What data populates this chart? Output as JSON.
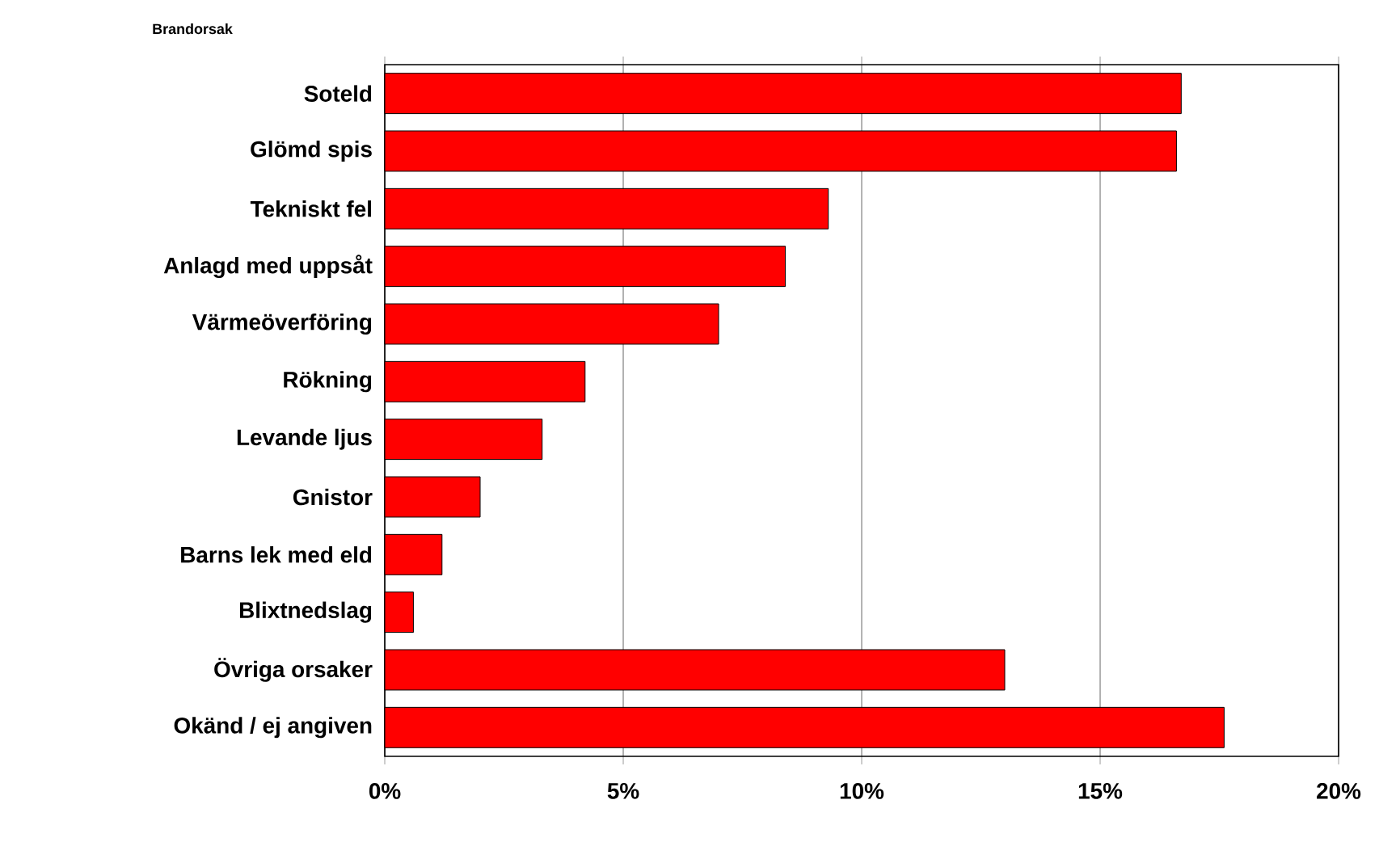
{
  "chart_data": {
    "type": "bar",
    "orientation": "horizontal",
    "ylabel": "Brandorsak",
    "categories": [
      "Soteld",
      "Glömd spis",
      "Tekniskt fel",
      "Anlagd med uppsåt",
      "Värmeöverföring",
      "Rökning",
      "Levande ljus",
      "Gnistor",
      "Barns lek med eld",
      "Blixtnedslag",
      "Övriga orsaker",
      "Okänd / ej angiven"
    ],
    "values": [
      16.7,
      16.6,
      9.3,
      8.4,
      7.0,
      4.2,
      3.3,
      2.0,
      1.2,
      0.6,
      13.0,
      17.6
    ],
    "color": "#ff0000",
    "xlim": [
      0,
      20
    ],
    "xticks": [
      {
        "value": 0,
        "label": "0%"
      },
      {
        "value": 5,
        "label": "5%"
      },
      {
        "value": 10,
        "label": "10%"
      },
      {
        "value": 15,
        "label": "15%"
      },
      {
        "value": 20,
        "label": "20%"
      }
    ],
    "grid": "x"
  }
}
